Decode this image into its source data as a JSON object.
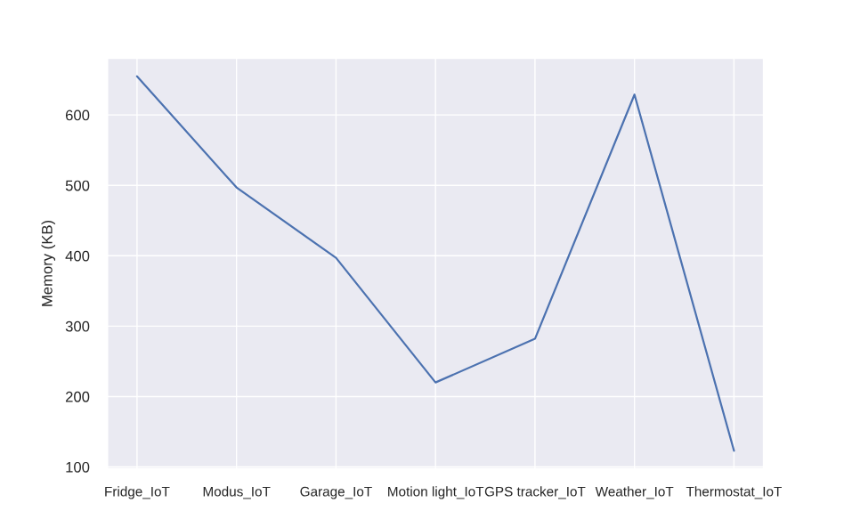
{
  "chart_data": {
    "type": "line",
    "ylabel": "Memory (KB)",
    "categories": [
      "Fridge_IoT",
      "Modus_IoT",
      "Garage_IoT",
      "Motion light_IoT",
      "GPS tracker_IoT",
      "Weather_IoT",
      "Thermostat_IoT"
    ],
    "series": [
      {
        "color": "#4c72b0",
        "values": [
          655,
          497,
          397,
          220,
          282,
          629,
          123
        ]
      }
    ],
    "ylim": [
      97,
      681
    ],
    "yticks": [
      100,
      200,
      300,
      400,
      500,
      600
    ],
    "grid": true,
    "marker": "none",
    "line_style": "solid"
  }
}
